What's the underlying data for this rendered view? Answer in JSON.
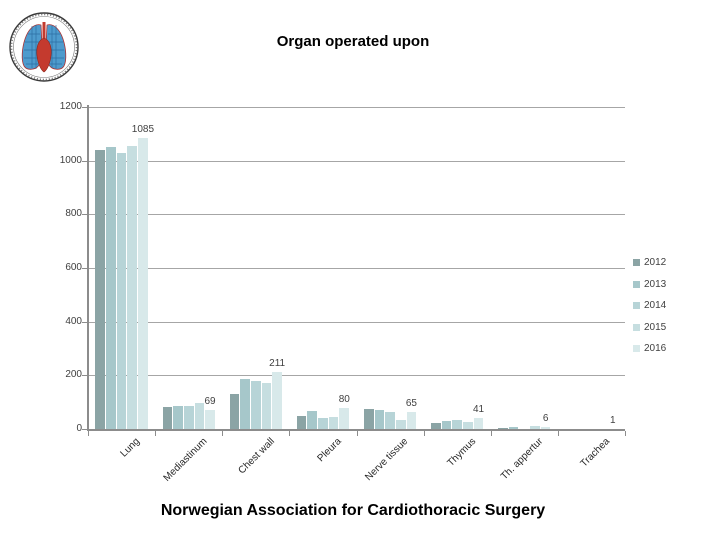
{
  "page": {
    "title": "Organ operated upon",
    "footer": "Norwegian Association for Cardiothoracic Surgery",
    "logo": "norwegian-association-cardiothoracic-surgery-seal"
  },
  "chart_data": {
    "type": "bar",
    "title": "Organ operated upon",
    "categories": [
      "Lung",
      "Mediastinum",
      "Chest wall",
      "Pleura",
      "Nerve tissue",
      "Thymus",
      "Th. appertur",
      "Trachea"
    ],
    "series": [
      {
        "name": "2012",
        "color": "#8BA4A5",
        "values": [
          1040,
          82,
          130,
          50,
          76,
          22,
          3,
          0
        ]
      },
      {
        "name": "2013",
        "color": "#A6C7CA",
        "values": [
          1050,
          85,
          185,
          68,
          70,
          31,
          8,
          0
        ]
      },
      {
        "name": "2014",
        "color": "#B7D4D7",
        "values": [
          1030,
          85,
          180,
          40,
          64,
          34,
          1,
          0
        ]
      },
      {
        "name": "2015",
        "color": "#C6DEE0",
        "values": [
          1055,
          97,
          170,
          45,
          35,
          25,
          10,
          0
        ]
      },
      {
        "name": "2016",
        "color": "#D8E9EA",
        "values": [
          1085,
          69,
          211,
          80,
          65,
          41,
          6,
          1
        ],
        "data_labels": true
      }
    ],
    "shown_data_labels": [
      "1085",
      "69",
      "211",
      "80",
      "65",
      "41",
      "6",
      "1"
    ],
    "xlabel": "",
    "ylabel": "",
    "ylim": [
      0,
      1200
    ],
    "y_tick_step": 200,
    "y_ticks": [
      "0",
      "200",
      "400",
      "600",
      "800",
      "1000",
      "1200"
    ],
    "grid": true,
    "legend_position": "right",
    "legend_entries": [
      "2012",
      "2013",
      "2014",
      "2015",
      "2016"
    ],
    "axis_color": "#8C8C8C",
    "gridline_color": "#A6A6A6",
    "background_color": "#FFFFFF"
  }
}
